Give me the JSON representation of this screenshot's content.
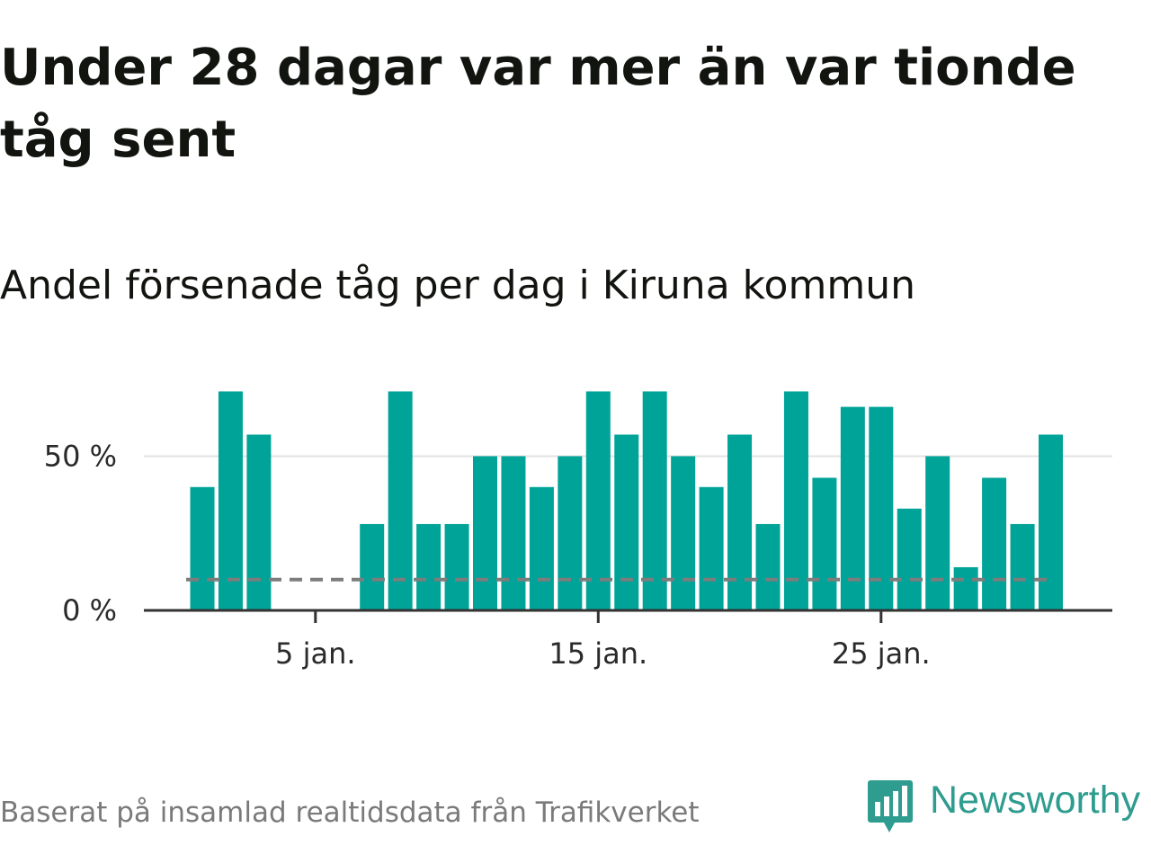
{
  "title": "Under 28 dagar var mer än var tionde tåg sent",
  "subtitle": "Andel försenade tåg per dag i Kiruna kommun",
  "source": "Baserat på insamlad realtidsdata från Trafikverket",
  "brand": {
    "name": "Newsworthy",
    "icon": "newsworthy-logo-icon",
    "color": "#2e9c8e"
  },
  "colors": {
    "bar": "#00a398",
    "grid": "#e3e3e3",
    "axis": "#333333",
    "reference": "#7d7d7d"
  },
  "chart_data": {
    "type": "bar",
    "x": [
      1,
      2,
      3,
      4,
      5,
      6,
      7,
      8,
      9,
      10,
      11,
      12,
      13,
      14,
      15,
      16,
      17,
      18,
      19,
      20,
      21,
      22,
      23,
      24,
      25,
      26,
      27,
      28,
      29,
      30,
      31
    ],
    "values": [
      40,
      71,
      57,
      0,
      0,
      0,
      28,
      71,
      28,
      28,
      50,
      50,
      40,
      50,
      71,
      57,
      71,
      50,
      40,
      57,
      28,
      71,
      43,
      66,
      66,
      33,
      50,
      14,
      43,
      28,
      57
    ],
    "reference_line": 10,
    "x_ticks": [
      {
        "value": 5,
        "label": "5 jan."
      },
      {
        "value": 15,
        "label": "15 jan."
      },
      {
        "value": 25,
        "label": "25 jan."
      }
    ],
    "y_ticks": [
      {
        "value": 0,
        "label": "0 %"
      },
      {
        "value": 50,
        "label": "50 %"
      }
    ],
    "ylim": [
      0,
      72
    ],
    "grid": true,
    "xlabel": "",
    "ylabel": ""
  }
}
